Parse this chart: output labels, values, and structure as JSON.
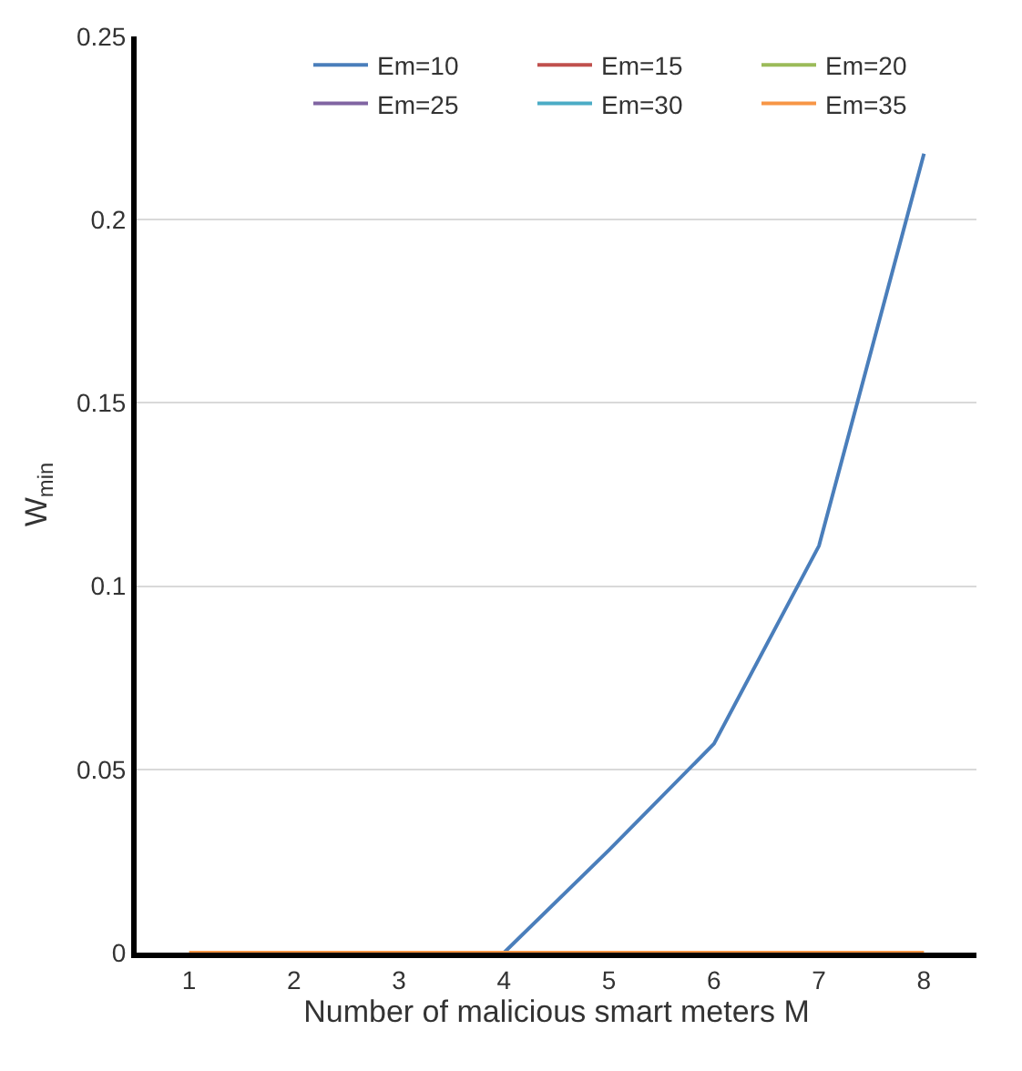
{
  "chart_data": {
    "type": "line",
    "xlabel": "Number of malicious smart meters M",
    "ylabel": "W$_{min}$",
    "categories": [
      "1",
      "2",
      "3",
      "4",
      "5",
      "6",
      "7",
      "8"
    ],
    "series": [
      {
        "name": "Em=10",
        "color": "#4a7ebb",
        "values": [
          null,
          null,
          null,
          0,
          0.028,
          0.057,
          0.111,
          0.218
        ]
      },
      {
        "name": "Em=15",
        "color": "#c0504d",
        "values": [
          null,
          null,
          null,
          null,
          null,
          null,
          null,
          null
        ]
      },
      {
        "name": "Em=20",
        "color": "#9bbb59",
        "values": [
          null,
          null,
          null,
          null,
          null,
          null,
          null,
          null
        ]
      },
      {
        "name": "Em=25",
        "color": "#8064a2",
        "values": [
          null,
          null,
          null,
          null,
          null,
          null,
          null,
          null
        ]
      },
      {
        "name": "Em=30",
        "color": "#4bacc6",
        "values": [
          null,
          null,
          null,
          null,
          null,
          null,
          null,
          null
        ]
      },
      {
        "name": "Em=35",
        "color": "#f79646",
        "values": [
          0,
          0,
          0,
          0,
          0,
          0,
          0,
          0
        ]
      }
    ],
    "ylim": [
      0,
      0.25
    ],
    "yticks": [
      0,
      0.05,
      0.1,
      0.15,
      0.2,
      0.25
    ],
    "grid": "y",
    "legend": "top right",
    "marker": "none",
    "line_style": "solid"
  }
}
